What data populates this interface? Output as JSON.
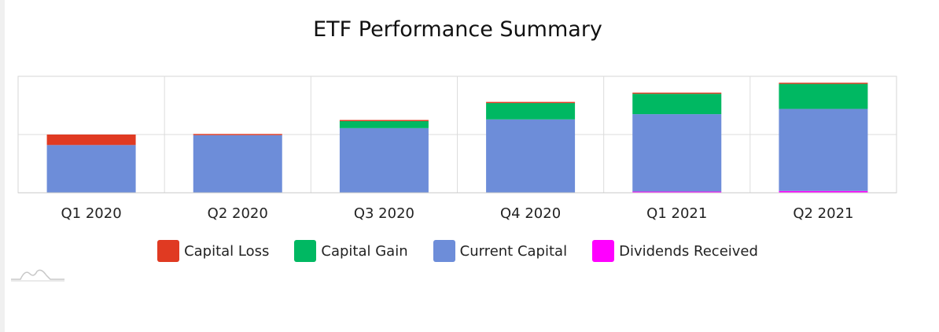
{
  "chart_data": {
    "type": "bar",
    "stacked": true,
    "title": "ETF Performance Summary",
    "categories": [
      "Q1 2020",
      "Q2 2020",
      "Q3 2020",
      "Q4 2020",
      "Q1 2021",
      "Q2 2021"
    ],
    "ylim": [
      0,
      2
    ],
    "grid": true,
    "legend_position": "bottom",
    "series": [
      {
        "name": "Dividends Received",
        "color": "#ff00ff",
        "values": [
          0,
          0,
          0,
          0,
          0.02,
          0.03
        ]
      },
      {
        "name": "Current Capital",
        "color": "#6d8dd9",
        "values": [
          0.82,
          0.99,
          1.11,
          1.26,
          1.33,
          1.41
        ]
      },
      {
        "name": "Capital Gain",
        "color": "#00b862",
        "values": [
          0,
          0,
          0.12,
          0.28,
          0.35,
          0.43
        ]
      },
      {
        "name": "Capital Loss",
        "color": "#e03a22",
        "values": [
          0.18,
          0.02,
          0.02,
          0.02,
          0.02,
          0.02
        ]
      }
    ],
    "legend_order": [
      "Capital Loss",
      "Capital Gain",
      "Current Capital",
      "Dividends Received"
    ]
  }
}
